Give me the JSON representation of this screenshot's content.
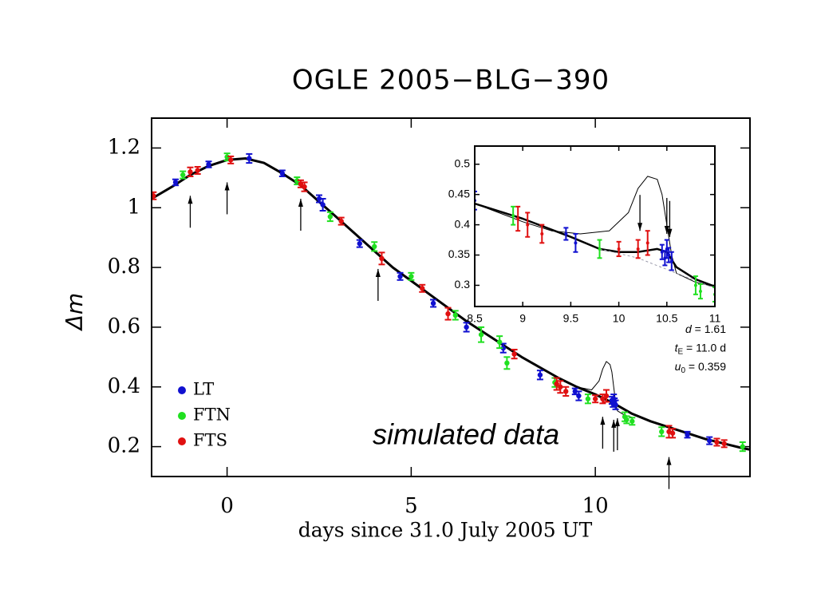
{
  "chart_data": [
    {
      "type": "scatter",
      "title": "OGLE 2005−BLG−390",
      "xlabel": "days since 31.0 July 2005 UT",
      "ylabel": "Δm",
      "xlim": [
        -2.05,
        14.2
      ],
      "ylim": [
        0.1,
        1.3
      ],
      "xticks": [
        0,
        5,
        10
      ],
      "yticks": [
        0.2,
        0.4,
        0.6,
        0.8,
        1,
        1.2
      ],
      "legend": "lower left",
      "series": [
        {
          "name": "LT",
          "color": "#1010d0",
          "x": [
            -1.4,
            -0.5,
            0.6,
            1.5,
            2.5,
            2.6,
            3.6,
            4.7,
            5.6,
            6.5,
            7.5,
            8.5,
            9.45,
            9.55,
            10.45,
            10.48,
            10.5,
            10.52,
            10.55,
            12.5,
            13.1
          ],
          "values": [
            1.085,
            1.145,
            1.165,
            1.115,
            1.03,
            1.01,
            0.88,
            0.77,
            0.68,
            0.6,
            0.53,
            0.44,
            0.385,
            0.37,
            0.355,
            0.345,
            0.36,
            0.35,
            0.34,
            0.24,
            0.22
          ],
          "errors": [
            0.01,
            0.01,
            0.015,
            0.01,
            0.012,
            0.02,
            0.012,
            0.012,
            0.012,
            0.015,
            0.015,
            0.015,
            0.01,
            0.015,
            0.012,
            0.012,
            0.015,
            0.012,
            0.015,
            0.01,
            0.012
          ]
        },
        {
          "name": "FTN",
          "color": "#20e020",
          "x": [
            -1.2,
            0,
            1.9,
            2.8,
            4,
            5,
            6.2,
            6.9,
            7.4,
            7.6,
            8.9,
            9.8,
            10.8,
            10.85,
            11,
            11.8,
            14
          ],
          "values": [
            1.11,
            1.17,
            1.09,
            0.97,
            0.87,
            0.77,
            0.64,
            0.575,
            0.55,
            0.48,
            0.415,
            0.36,
            0.3,
            0.29,
            0.285,
            0.25,
            0.2
          ],
          "errors": [
            0.012,
            0.012,
            0.012,
            0.015,
            0.015,
            0.012,
            0.015,
            0.025,
            0.02,
            0.02,
            0.015,
            0.015,
            0.015,
            0.012,
            0.012,
            0.015,
            0.015
          ]
        },
        {
          "name": "FTS",
          "color": "#e01010",
          "x": [
            -2,
            -1,
            -0.8,
            0.1,
            2,
            2.1,
            3.1,
            4.2,
            5.3,
            6,
            7.8,
            8.95,
            9.05,
            9.2,
            10,
            10.2,
            10.3,
            12,
            12.1,
            13.3,
            13.5
          ],
          "values": [
            1.04,
            1.12,
            1.125,
            1.16,
            1.08,
            1.07,
            0.955,
            0.83,
            0.73,
            0.645,
            0.51,
            0.41,
            0.4,
            0.385,
            0.36,
            0.36,
            0.37,
            0.25,
            0.245,
            0.215,
            0.21
          ],
          "errors": [
            0.012,
            0.015,
            0.012,
            0.012,
            0.012,
            0.015,
            0.012,
            0.02,
            0.012,
            0.02,
            0.015,
            0.02,
            0.02,
            0.015,
            0.012,
            0.015,
            0.02,
            0.02,
            0.015,
            0.012,
            0.012
          ]
        }
      ],
      "lines": [
        {
          "color": "#000000",
          "linewidth": 3,
          "x": [
            -2.05,
            -1.5,
            -1,
            -0.5,
            0,
            0.5,
            1,
            1.5,
            2,
            2.5,
            3,
            3.5,
            4,
            4.5,
            5,
            5.5,
            6,
            6.5,
            7,
            7.5,
            8,
            8.5,
            9,
            9.5,
            10,
            10.5,
            11,
            11.5,
            12,
            12.5,
            13,
            13.5,
            14,
            14.2
          ],
          "values": [
            1.03,
            1.07,
            1.11,
            1.14,
            1.16,
            1.165,
            1.15,
            1.115,
            1.075,
            1.02,
            0.965,
            0.91,
            0.855,
            0.8,
            0.755,
            0.71,
            0.665,
            0.62,
            0.58,
            0.54,
            0.5,
            0.465,
            0.43,
            0.4,
            0.375,
            0.345,
            0.31,
            0.285,
            0.265,
            0.245,
            0.225,
            0.21,
            0.195,
            0.19
          ]
        },
        {
          "color": "#000000",
          "linewidth": 1,
          "x": [
            9.5,
            9.9,
            10.1,
            10.2,
            10.3,
            10.4,
            10.45,
            10.5,
            10.55,
            10.6,
            10.8,
            11
          ],
          "values": [
            0.4,
            0.39,
            0.42,
            0.46,
            0.485,
            0.475,
            0.45,
            0.4,
            0.35,
            0.32,
            0.305,
            0.298
          ]
        }
      ],
      "arrows": {
        "direction": "up",
        "x": [
          -1,
          0,
          2,
          4.1,
          10.2,
          10.5,
          10.6,
          12
        ],
        "values": [
          1.04,
          1.085,
          1.03,
          0.795,
          0.3,
          0.29,
          0.295,
          0.165
        ]
      },
      "annotation": "simulated data",
      "params": [
        {
          "var": "d",
          "rest": " = 1.61"
        },
        {
          "var": "t",
          "sub": "E",
          "rest": " = 11.0 d"
        },
        {
          "var": "u",
          "sub": "0",
          "rest": " = 0.359"
        }
      ]
    },
    {
      "type": "scatter",
      "xlim": [
        8.5,
        11
      ],
      "ylim": [
        0.265,
        0.53
      ],
      "xticks": [
        8.5,
        9,
        9.5,
        10,
        10.5,
        11
      ],
      "yticks": [
        0.3,
        0.35,
        0.4,
        0.45,
        0.5
      ],
      "lines": [
        {
          "color": "#000000",
          "linewidth": 2.5,
          "x": [
            8.5,
            9,
            9.5,
            9.8,
            10,
            10.2,
            10.4,
            10.5,
            10.6,
            10.8,
            11
          ],
          "values": [
            0.435,
            0.41,
            0.38,
            0.36,
            0.355,
            0.355,
            0.36,
            0.355,
            0.33,
            0.31,
            0.298
          ]
        },
        {
          "color": "#000000",
          "linewidth": 1,
          "x": [
            8.5,
            9,
            9.3,
            9.6,
            9.9,
            10.1,
            10.2,
            10.3,
            10.4,
            10.45,
            10.5,
            10.55,
            10.6,
            10.8,
            11
          ],
          "values": [
            0.435,
            0.405,
            0.39,
            0.385,
            0.39,
            0.42,
            0.46,
            0.48,
            0.475,
            0.45,
            0.4,
            0.35,
            0.32,
            0.305,
            0.298
          ]
        },
        {
          "color": "#9999aa",
          "linewidth": 1,
          "dash": true,
          "x": [
            9.8,
            10.2,
            10.6,
            11
          ],
          "values": [
            0.36,
            0.345,
            0.32,
            0.295
          ]
        }
      ],
      "arrows": {
        "direction": "down",
        "x": [
          10.22,
          10.5,
          10.53
        ],
        "values": [
          0.39,
          0.385,
          0.38
        ]
      }
    }
  ]
}
